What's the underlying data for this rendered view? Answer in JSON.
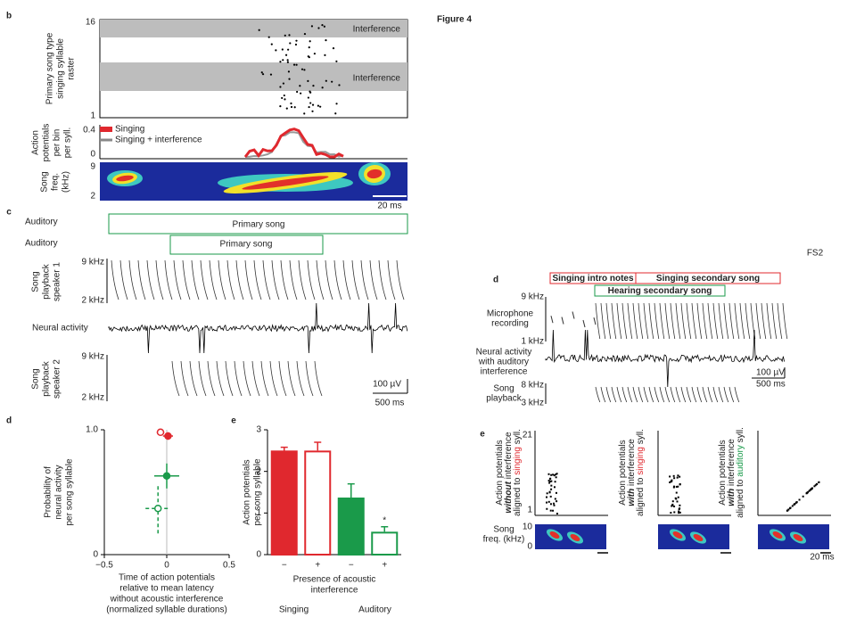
{
  "figure_title": "Figure 4",
  "corner_label": "FS2",
  "panel_b": {
    "label": "b",
    "raster_ylabel": [
      "Primary song type",
      "singing syllable",
      "raster"
    ],
    "raster_ticks": [
      "16",
      "1"
    ],
    "interference": [
      "Interference",
      "Interference"
    ],
    "ap_ylabel": [
      "Action",
      "potentials",
      "per bin",
      "per syll."
    ],
    "ap_ticks": [
      "0.4",
      "0"
    ],
    "legend": [
      "Singing",
      "Singing + interference"
    ],
    "freq_ylabel": [
      "Song",
      "freq.",
      "(kHz)"
    ],
    "freq_ticks": [
      "9",
      "2"
    ],
    "scale": "20 ms"
  },
  "panel_c": {
    "label": "c",
    "rows": [
      {
        "label": "Auditory",
        "box": "Primary song"
      },
      {
        "label": "Auditory",
        "box": "Primary song"
      }
    ],
    "speaker1_ylabel": [
      "Song",
      "playback",
      "speaker 1"
    ],
    "speaker1_ticks": [
      "9 kHz",
      "2 kHz"
    ],
    "neural": "Neural activity",
    "speaker2_ylabel": [
      "Song",
      "playback",
      "speaker 2"
    ],
    "speaker2_ticks": [
      "9 kHz",
      "2 kHz"
    ],
    "scale_v": "100 µV",
    "scale_h": "500 ms"
  },
  "chart_data": [
    {
      "type": "scatter",
      "panel_label": "d",
      "ylabel": [
        "Probability of",
        "neural activity",
        "per song syllable"
      ],
      "xlabel": [
        "Time of action potentials",
        "relative to mean latency",
        "without acoustic interference",
        "(normalized syllable durations)"
      ],
      "xlim": [
        -0.5,
        0.5
      ],
      "ylim": [
        0,
        1
      ],
      "xticks": [
        {
          "value": -0.5,
          "label": "−0.5"
        },
        0,
        0.5
      ],
      "yticks": [
        0,
        {
          "value": 1,
          "label": "1.0"
        }
      ],
      "series": [
        {
          "color": "#e0282e",
          "filled": true,
          "dashed": false,
          "x": [
            0.01
          ],
          "y": [
            0.95
          ],
          "xerr": [
            0.04
          ],
          "yerr": [
            0.03
          ]
        },
        {
          "color": "#e0282e",
          "filled": false,
          "dashed": true,
          "x": [
            -0.05
          ],
          "y": [
            0.98
          ],
          "xerr": [
            0.03
          ],
          "yerr": [
            0.01
          ]
        },
        {
          "color": "#1a9a4a",
          "filled": true,
          "dashed": false,
          "x": [
            0
          ],
          "y": [
            0.63
          ],
          "xerr": [
            0.1
          ],
          "yerr": [
            0.1
          ]
        },
        {
          "color": "#1a9a4a",
          "filled": false,
          "dashed": true,
          "x": [
            -0.07
          ],
          "y": [
            0.37
          ],
          "xerr": [
            0.1
          ],
          "yerr": [
            0.2
          ]
        }
      ]
    },
    {
      "type": "bar",
      "panel_label": "e",
      "ylabel": [
        "Action potentials",
        "per song syllable"
      ],
      "categories": [
        "−",
        "+",
        "−",
        "+"
      ],
      "values": [
        2.48,
        2.5,
        1.35,
        0.55
      ],
      "errors": [
        0.1,
        0.2,
        0.35,
        0.12
      ],
      "colors": [
        "#e0282e",
        "#e0282e",
        "#1a9a4a",
        "#1a9a4a"
      ],
      "filled": [
        true,
        false,
        true,
        false
      ],
      "ylim": [
        0,
        3
      ],
      "yticks": [
        0,
        1,
        2,
        3
      ],
      "xlabel": [
        "Presence of acoustic",
        "interference"
      ],
      "groups": [
        "Singing",
        "Auditory"
      ],
      "group_colors": [
        "#e0282e",
        "#1a9a4a"
      ],
      "annotation": "*"
    }
  ],
  "panel_d2": {
    "label": "d",
    "boxes": [
      "Singing intro notes",
      "Singing secondary song",
      "Hearing secondary song"
    ],
    "mic_label": [
      "Microphone",
      "recording"
    ],
    "mic_ticks": [
      "9 kHz",
      "1 kHz"
    ],
    "neural_label": [
      "Neural activity",
      "with auditory",
      "interference"
    ],
    "scale_v": "100 µV",
    "scale_h": "500 ms",
    "playback_label": [
      "Song",
      "playback"
    ],
    "playback_ticks": [
      "8 kHz",
      "3 kHz"
    ]
  },
  "panel_e2": {
    "label": "e",
    "panels": [
      {
        "ticks": [
          "21",
          "1"
        ],
        "ylabel": [
          [
            {
              "text": "Action potentials"
            }
          ],
          [
            {
              "text": "without",
              "emph": true
            },
            {
              "text": " interference"
            }
          ],
          [
            {
              "text": "aligned to "
            },
            {
              "text": "singing",
              "color": "#e0282e"
            },
            {
              "text": " syll."
            }
          ]
        ]
      },
      {
        "ylabel": [
          [
            {
              "text": "Action potentials"
            }
          ],
          [
            {
              "text": "with",
              "emph": true
            },
            {
              "text": " interference"
            }
          ],
          [
            {
              "text": "aligned to "
            },
            {
              "text": "singing",
              "color": "#e0282e"
            },
            {
              "text": " syll."
            }
          ]
        ]
      },
      {
        "ylabel": [
          [
            {
              "text": "Action potentials"
            }
          ],
          [
            {
              "text": "with",
              "emph": true
            },
            {
              "text": " interference"
            }
          ],
          [
            {
              "text": "aligned to "
            },
            {
              "text": "auditory",
              "color": "#1a9a4a"
            },
            {
              "text": " syll."
            }
          ]
        ]
      }
    ],
    "freq_label": [
      "Song",
      "freq. (kHz)"
    ],
    "freq_ticks": [
      "10",
      "0"
    ],
    "scale": "20 ms"
  }
}
